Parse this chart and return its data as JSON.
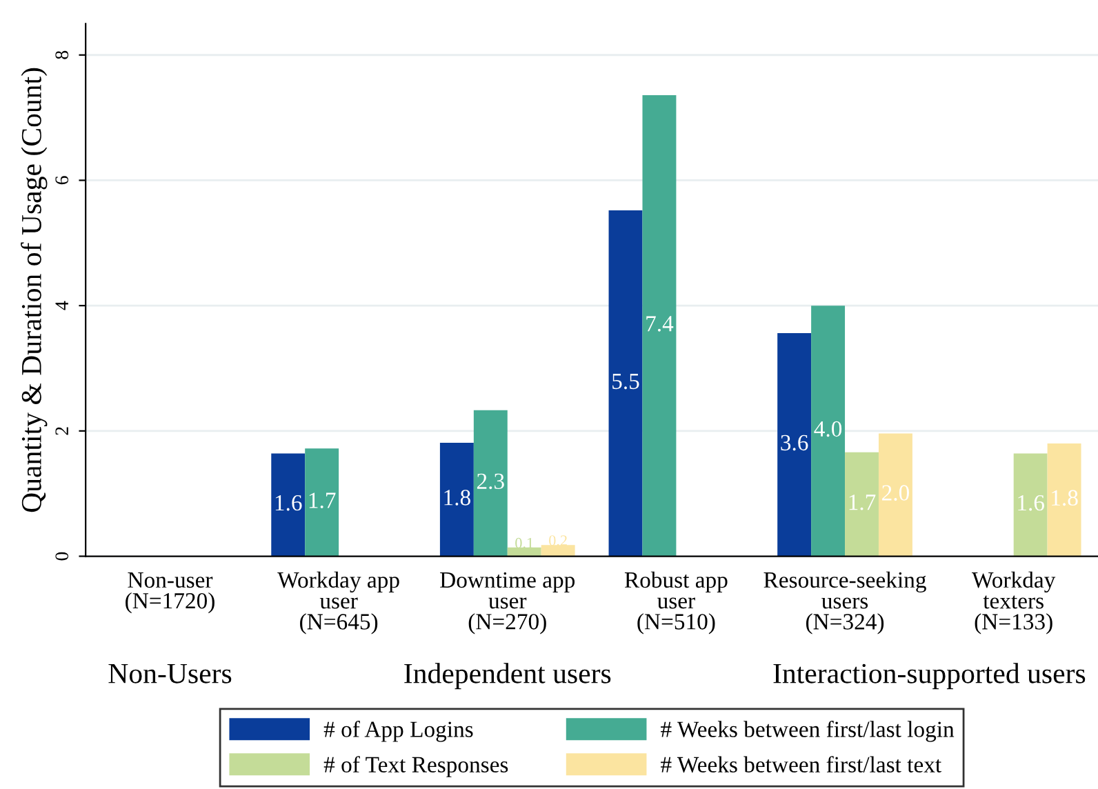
{
  "chart_data": {
    "type": "bar",
    "ylabel": "Quantity & Duration of Usage (Count)",
    "categories": [
      "Non-user\n(N=1720)",
      "Workday app\nuser\n(N=645)",
      "Downtime app\nuser\n(N=270)",
      "Robust app\nuser\n(N=510)",
      "Resource-seeking\nusers\n(N=324)",
      "Workday\ntexters\n(N=133)"
    ],
    "series": [
      {
        "name": "# of App Logins",
        "color": "#0a3d9a",
        "values": [
          null,
          1.64,
          1.81,
          5.52,
          3.56,
          null
        ],
        "value_labels": [
          null,
          "1.6",
          "1.8",
          "5.5",
          "3.6",
          null
        ]
      },
      {
        "name": "# Weeks between first/last login",
        "color": "#45ab93",
        "values": [
          null,
          1.72,
          2.33,
          7.36,
          4.0,
          null
        ],
        "value_labels": [
          null,
          "1.7",
          "2.3",
          "7.4",
          "4.0",
          null
        ]
      },
      {
        "name": "# of Text Responses",
        "color": "#c4dc98",
        "values": [
          null,
          null,
          0.14,
          null,
          1.66,
          1.64
        ],
        "value_labels": [
          null,
          null,
          "0.1",
          null,
          "1.7",
          "1.6"
        ]
      },
      {
        "name": "# Weeks between first/last text",
        "color": "#fbe4a0",
        "values": [
          null,
          null,
          0.18,
          null,
          1.96,
          1.8
        ],
        "value_labels": [
          null,
          null,
          "0.2",
          null,
          "2.0",
          "1.8"
        ]
      }
    ],
    "annotations": [
      "Non-Users",
      "Independent users",
      "Interaction-supported users"
    ],
    "ylim": [
      0,
      8.5
    ],
    "yticks": [
      0,
      2,
      4,
      6,
      8
    ],
    "grid": "y",
    "legend": "bottom"
  }
}
